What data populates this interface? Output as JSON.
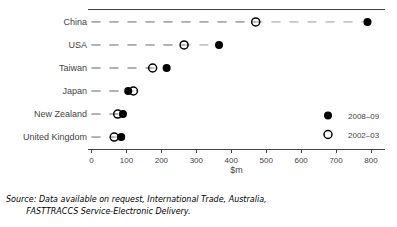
{
  "chart_data": {
    "type": "dot",
    "categories": [
      "China",
      "USA",
      "Taiwan",
      "Japan",
      "New Zealand",
      "United Kingdom"
    ],
    "series": [
      {
        "name": "2008–09",
        "color": "#000000",
        "marker": "circle",
        "values": [
          790,
          365,
          215,
          105,
          90,
          85
        ]
      },
      {
        "name": "2002–03",
        "color": "#000000",
        "marker": "circle-open",
        "values": [
          470,
          265,
          175,
          120,
          75,
          65
        ]
      }
    ],
    "xlabel": "$m",
    "xlim": [
      -10,
      840
    ],
    "xticks": [
      0,
      100,
      200,
      300,
      400,
      500,
      600,
      700,
      800
    ],
    "line_style": "dashed",
    "grid": false,
    "legend": "lower right",
    "annotations": [
      "Source: Data available on request, International Trade, Australia,",
      "        FASTTRACCS Service-Electronic Delivery."
    ]
  }
}
